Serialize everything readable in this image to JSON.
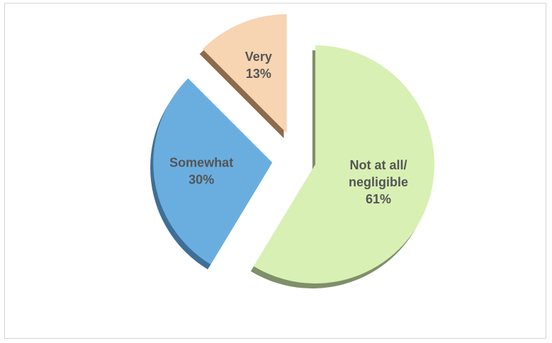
{
  "chart_data": {
    "type": "pie",
    "exploded": true,
    "style": "3d",
    "slices": [
      {
        "label": "Not at all/ negligible",
        "label_lines": [
          "Not at all/",
          "negligible"
        ],
        "value": 61,
        "value_label": "61%",
        "color": "#d9f0b4",
        "side_color": "#7f8f6a"
      },
      {
        "label": "Somewhat",
        "label_lines": [
          "Somewhat"
        ],
        "value": 30,
        "value_label": "30%",
        "color": "#6aaee0",
        "side_color": "#3f6f96"
      },
      {
        "label": "Very",
        "label_lines": [
          "Very"
        ],
        "value": 13,
        "value_label": "13%",
        "color": "#f7d4b2",
        "side_color": "#8c6a4c"
      }
    ]
  }
}
